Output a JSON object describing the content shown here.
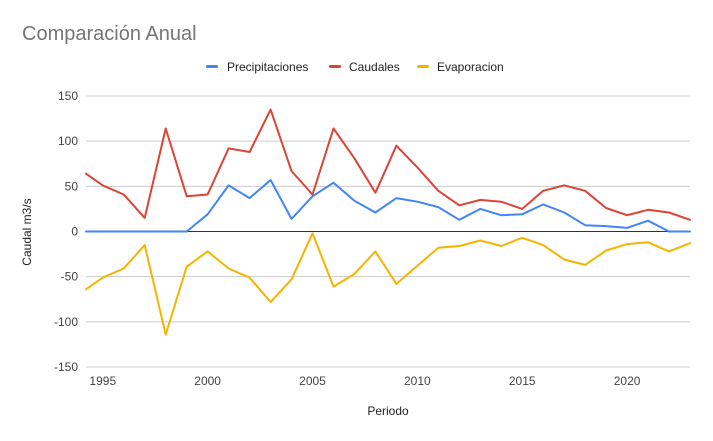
{
  "chart_data": {
    "type": "line",
    "title": "Comparación Anual",
    "xlabel": "Periodo",
    "ylabel": "Caudal m3/s",
    "xlim": [
      1994.2,
      2023
    ],
    "ylim": [
      -150,
      150
    ],
    "yticks": [
      150,
      100,
      50,
      0,
      -50,
      -100,
      -150
    ],
    "ytick_labels": [
      "150",
      "100",
      "50",
      "0",
      "-50",
      "-100",
      "-150"
    ],
    "xticks": [
      1995,
      2000,
      2005,
      2010,
      2015,
      2020
    ],
    "xtick_labels": [
      "1995",
      "2000",
      "2005",
      "2010",
      "2015",
      "2020"
    ],
    "grid": true,
    "legend_position": "top",
    "x": [
      1994.2,
      1995,
      1996,
      1997,
      1998,
      1999,
      2000,
      2001,
      2002,
      2003,
      2004,
      2005,
      2006,
      2007,
      2008,
      2009,
      2010,
      2011,
      2012,
      2013,
      2014,
      2015,
      2016,
      2017,
      2018,
      2019,
      2020,
      2021,
      2022,
      2023
    ],
    "series": [
      {
        "name": "Precipitaciones",
        "color": "#4285f4",
        "values": [
          0,
          0,
          0,
          0,
          0,
          0,
          19,
          51,
          37,
          57,
          14,
          39,
          54,
          34,
          21,
          37,
          33,
          27,
          13,
          25,
          18,
          19,
          30,
          21,
          7,
          6,
          4,
          12,
          0,
          0
        ]
      },
      {
        "name": "Caudales",
        "color": "#db4437",
        "values": [
          64,
          51,
          41,
          15,
          114,
          39,
          41,
          92,
          88,
          135,
          67,
          41,
          114,
          81,
          43,
          95,
          71,
          45,
          29,
          35,
          33,
          25,
          45,
          51,
          45,
          26,
          18,
          24,
          21,
          13
        ]
      },
      {
        "name": "Evaporacion",
        "color": "#f4b400",
        "values": [
          -64,
          -51,
          -41,
          -15,
          -114,
          -39,
          -22,
          -41,
          -51,
          -78,
          -53,
          -2,
          -61,
          -47,
          -22,
          -58,
          -38,
          -18,
          -16,
          -10,
          -16,
          -7,
          -15,
          -31,
          -37,
          -21,
          -14,
          -12,
          -22,
          -13
        ]
      }
    ]
  }
}
